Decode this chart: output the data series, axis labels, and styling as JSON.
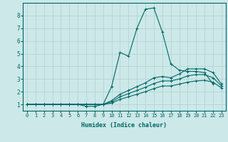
{
  "title": "",
  "xlabel": "Humidex (Indice chaleur)",
  "bg_color": "#cce8e8",
  "grid_color": "#b0d0d0",
  "line_color": "#006666",
  "xlim": [
    -0.5,
    23.5
  ],
  "ylim": [
    0.5,
    9.0
  ],
  "xticks": [
    0,
    1,
    2,
    3,
    4,
    5,
    6,
    7,
    8,
    9,
    10,
    11,
    12,
    13,
    14,
    15,
    16,
    17,
    18,
    19,
    20,
    21,
    22,
    23
  ],
  "yticks": [
    1,
    2,
    3,
    4,
    5,
    6,
    7,
    8
  ],
  "lines": [
    {
      "x": [
        0,
        1,
        2,
        3,
        4,
        5,
        6,
        7,
        8,
        9,
        10,
        11,
        12,
        13,
        14,
        15,
        16,
        17,
        18,
        19,
        20,
        21,
        22
      ],
      "y": [
        1.0,
        1.0,
        1.0,
        1.0,
        1.0,
        1.0,
        1.0,
        0.85,
        0.85,
        1.0,
        2.4,
        5.1,
        4.8,
        7.0,
        8.5,
        8.6,
        6.7,
        4.2,
        3.7,
        3.6,
        3.6,
        3.5,
        2.6
      ]
    },
    {
      "x": [
        0,
        1,
        2,
        3,
        4,
        5,
        6,
        7,
        8,
        9,
        10,
        11,
        12,
        13,
        14,
        15,
        16,
        17,
        18,
        19,
        20,
        21,
        22,
        23
      ],
      "y": [
        1.0,
        1.0,
        1.0,
        1.0,
        1.0,
        1.0,
        1.0,
        1.0,
        1.0,
        1.0,
        1.3,
        1.8,
        2.1,
        2.4,
        2.7,
        3.1,
        3.2,
        3.1,
        3.4,
        3.8,
        3.8,
        3.8,
        3.5,
        2.6
      ]
    },
    {
      "x": [
        0,
        1,
        2,
        3,
        4,
        5,
        6,
        7,
        8,
        9,
        10,
        11,
        12,
        13,
        14,
        15,
        16,
        17,
        18,
        19,
        20,
        21,
        22,
        23
      ],
      "y": [
        1.0,
        1.0,
        1.0,
        1.0,
        1.0,
        1.0,
        1.0,
        1.0,
        1.0,
        1.0,
        1.2,
        1.6,
        1.85,
        2.1,
        2.35,
        2.65,
        2.85,
        2.85,
        3.0,
        3.25,
        3.35,
        3.35,
        3.1,
        2.45
      ]
    },
    {
      "x": [
        0,
        1,
        2,
        3,
        4,
        5,
        6,
        7,
        8,
        9,
        10,
        11,
        12,
        13,
        14,
        15,
        16,
        17,
        18,
        19,
        20,
        21,
        22,
        23
      ],
      "y": [
        1.0,
        1.0,
        1.0,
        1.0,
        1.0,
        1.0,
        1.0,
        1.0,
        1.0,
        1.0,
        1.1,
        1.4,
        1.6,
        1.8,
        2.0,
        2.25,
        2.45,
        2.45,
        2.6,
        2.75,
        2.85,
        2.9,
        2.75,
        2.3
      ]
    }
  ]
}
